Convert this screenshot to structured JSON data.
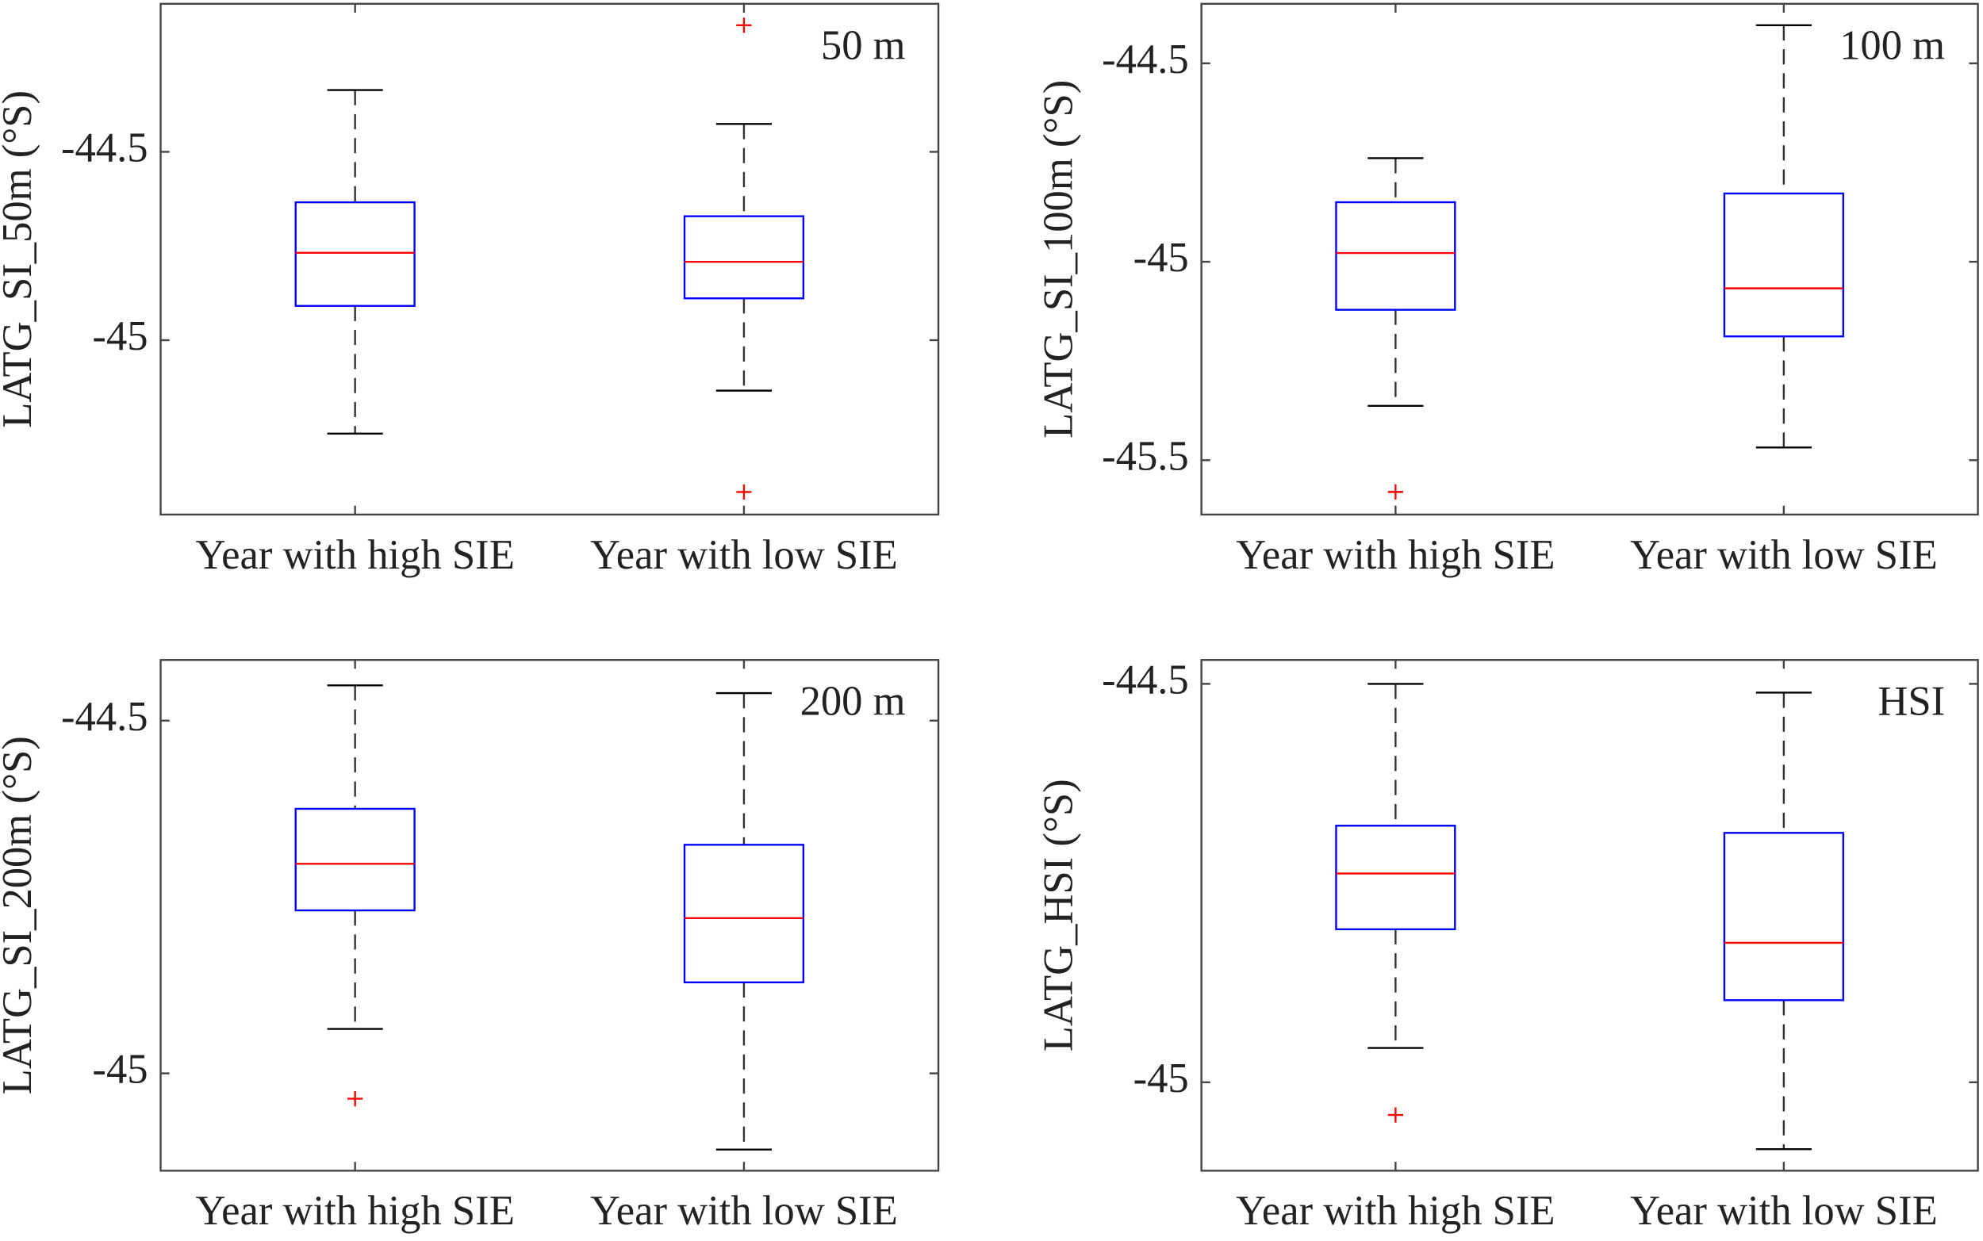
{
  "chart_data": [
    {
      "type": "box",
      "annotation": "50 m",
      "ylabel": "LATG_SI_50m (°S)",
      "categories": [
        "Year with high SIE",
        "Year with low SIE"
      ],
      "ylim": [
        -45.463,
        -44.107
      ],
      "yticks": [
        -44.5,
        -45
      ],
      "box_color": "#0000ff",
      "median_color": "#ff0000",
      "whisker_color": "#000000",
      "outlier_color": "#ff0000",
      "boxes": [
        {
          "whisker_low": -45.248,
          "q1": -44.909,
          "median": -44.768,
          "q3": -44.634,
          "whisker_high": -44.336,
          "outliers": []
        },
        {
          "whisker_low": -45.134,
          "q1": -44.889,
          "median": -44.792,
          "q3": -44.671,
          "whisker_high": -44.426,
          "outliers": [
            -44.164,
            -45.403
          ]
        }
      ]
    },
    {
      "type": "box",
      "annotation": "100 m",
      "ylabel": "LATG_SI_100m (°S)",
      "categories": [
        "Year with high SIE",
        "Year with low SIE"
      ],
      "ylim": [
        -45.637,
        -44.35
      ],
      "yticks": [
        -44.5,
        -45,
        -45.5
      ],
      "box_color": "#0000ff",
      "median_color": "#ff0000",
      "whisker_color": "#000000",
      "outlier_color": "#ff0000",
      "boxes": [
        {
          "whisker_low": -45.363,
          "q1": -45.121,
          "median": -44.978,
          "q3": -44.85,
          "whisker_high": -44.739,
          "outliers": [
            -45.58
          ]
        },
        {
          "whisker_low": -45.468,
          "q1": -45.188,
          "median": -45.067,
          "q3": -44.828,
          "whisker_high": -44.404,
          "outliers": []
        }
      ]
    },
    {
      "type": "box",
      "annotation": "200 m",
      "ylabel": "LATG_SI_200m (°S)",
      "categories": [
        "Year with high SIE",
        "Year with low SIE"
      ],
      "ylim": [
        -45.138,
        -44.414
      ],
      "yticks": [
        -44.5,
        -45
      ],
      "box_color": "#0000ff",
      "median_color": "#ff0000",
      "whisker_color": "#000000",
      "outlier_color": "#ff0000",
      "boxes": [
        {
          "whisker_low": -44.937,
          "q1": -44.769,
          "median": -44.703,
          "q3": -44.625,
          "whisker_high": -44.45,
          "outliers": [
            -45.036
          ]
        },
        {
          "whisker_low": -45.108,
          "q1": -44.871,
          "median": -44.78,
          "q3": -44.676,
          "whisker_high": -44.461,
          "outliers": []
        }
      ]
    },
    {
      "type": "box",
      "annotation": "HSI",
      "ylabel": "LATG_HSI (°S)",
      "categories": [
        "Year with high SIE",
        "Year with low SIE"
      ],
      "ylim": [
        -45.111,
        -44.47
      ],
      "yticks": [
        -44.5,
        -45
      ],
      "box_color": "#0000ff",
      "median_color": "#ff0000",
      "whisker_color": "#000000",
      "outlier_color": "#ff0000",
      "boxes": [
        {
          "whisker_low": -44.957,
          "q1": -44.808,
          "median": -44.738,
          "q3": -44.678,
          "whisker_high": -44.5,
          "outliers": [
            -45.041
          ]
        },
        {
          "whisker_low": -45.084,
          "q1": -44.897,
          "median": -44.825,
          "q3": -44.687,
          "whisker_high": -44.511,
          "outliers": []
        }
      ]
    }
  ]
}
